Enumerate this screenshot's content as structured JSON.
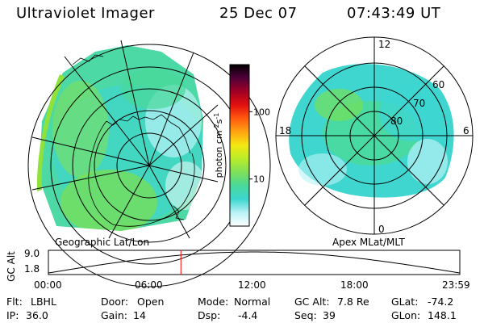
{
  "header": {
    "title": "Ultraviolet Imager",
    "date": "25 Dec 07",
    "time": "07:43:49 UT"
  },
  "colorbar": {
    "unit_label": "photon cm",
    "unit_sup1": "-2",
    "unit_mid": "s",
    "unit_sup2": "-1",
    "ticks": [
      {
        "value": 100,
        "label": "100"
      },
      {
        "value": 10,
        "label": "10"
      }
    ],
    "range": [
      2,
      500
    ],
    "scale": "log",
    "colors": [
      "#ffffff",
      "#b9f2f6",
      "#3ed6d0",
      "#49d89a",
      "#7ee05a",
      "#b8ec2a",
      "#f4e812",
      "#ffa412",
      "#ff5a10",
      "#e11010",
      "#a00024",
      "#50003a",
      "#000000"
    ]
  },
  "left_panel": {
    "caption": "Geographic Lat/Lon"
  },
  "right_panel": {
    "caption": "Apex MLat/MLT",
    "mlt_labels": {
      "top": "12",
      "right": "6",
      "bottom": "0",
      "left": "18"
    },
    "lat_labels": [
      "60",
      "70",
      "80"
    ]
  },
  "orbit_plot": {
    "ylabel": "GC Alt",
    "ytick_top": "9.0",
    "ytick_bottom": "1.8",
    "ylim": [
      1.8,
      9.0
    ],
    "xticks": [
      "00:00",
      "06:00",
      "12:00",
      "18:00",
      "23:59"
    ],
    "current_time_hours": 7.73,
    "marker_color": "#ff0000"
  },
  "footer": {
    "row1": [
      {
        "label": "Flt:",
        "value": "LBHL"
      },
      {
        "label": "Door:",
        "value": "Open"
      },
      {
        "label": "Mode:",
        "value": "Normal"
      },
      {
        "label": "GC Alt:",
        "value": "7.8 Re"
      },
      {
        "label": "GLat:",
        "value": "-74.2"
      }
    ],
    "row2": [
      {
        "label": "IP:",
        "value": "36.0"
      },
      {
        "label": "Gain:",
        "value": "14"
      },
      {
        "label": "Dsp:",
        "value": "-4.4"
      },
      {
        "label": "Seq:",
        "value": "39"
      },
      {
        "label": "GLon:",
        "value": "148.1"
      }
    ]
  }
}
